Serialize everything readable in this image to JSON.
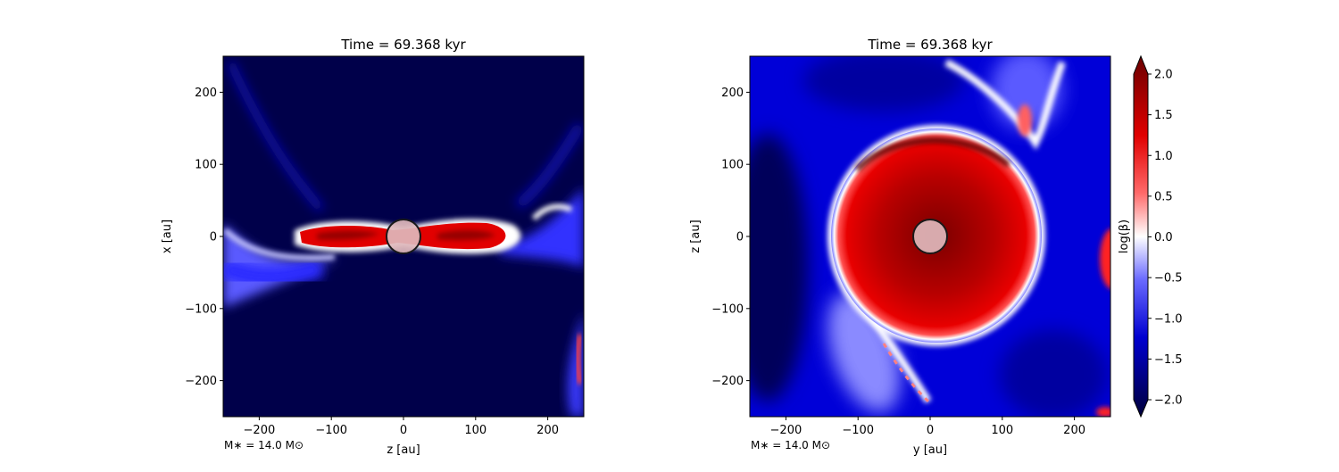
{
  "chart_data": [
    {
      "type": "heatmap",
      "title": "Time = 69.368 kyr",
      "xlabel": "z [au]",
      "ylabel": "x [au]",
      "xlim": [
        -250,
        250
      ],
      "ylim": [
        -250,
        250
      ],
      "xticks": [
        -200,
        -100,
        0,
        100,
        200
      ],
      "yticks": [
        -200,
        -100,
        0,
        100,
        200
      ],
      "xticklabels": [
        "−200",
        "−100",
        "0",
        "100",
        "200"
      ],
      "yticklabels": [
        "−200",
        "−100",
        "0",
        "100",
        "200"
      ],
      "annotation": "M∗ = 14.0 M⊙",
      "star_marker": {
        "x": 0,
        "y": 0,
        "radius": 19
      }
    },
    {
      "type": "heatmap",
      "title": "Time = 69.368 kyr",
      "xlabel": "y [au]",
      "ylabel": "z [au]",
      "xlim": [
        -250,
        250
      ],
      "ylim": [
        -250,
        250
      ],
      "xticks": [
        -200,
        -100,
        0,
        100,
        200
      ],
      "yticks": [
        -200,
        -100,
        0,
        100,
        200
      ],
      "xticklabels": [
        "−200",
        "−100",
        "0",
        "100",
        "200"
      ],
      "yticklabels": [
        "−200",
        "−100",
        "0",
        "100",
        "200"
      ],
      "annotation": "M∗ = 14.0 M⊙",
      "star_marker": {
        "x": 0,
        "y": 0,
        "radius": 19
      }
    }
  ],
  "colorbar": {
    "label": "log(β)",
    "range": [
      -2.0,
      2.0
    ],
    "ticks": [
      2.0,
      1.5,
      1.0,
      0.5,
      0.0,
      -0.5,
      -1.0,
      -1.5,
      -2.0
    ],
    "ticklabels": [
      "2.0",
      "1.5",
      "1.0",
      "0.5",
      "0.0",
      "−0.5",
      "−1.0",
      "−1.5",
      "−2.0"
    ],
    "colormap": [
      "#00003a",
      "#0000ff",
      "#ffffff",
      "#ff0000",
      "#6a0000"
    ]
  }
}
